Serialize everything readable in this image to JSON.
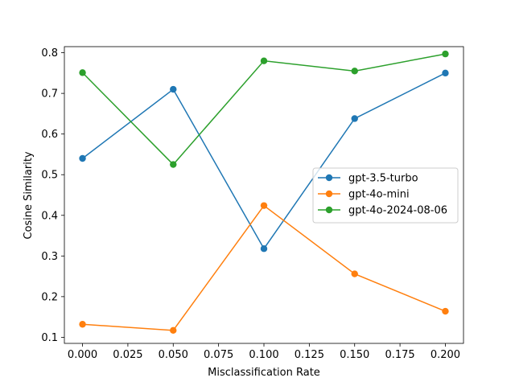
{
  "chart_data": {
    "type": "line",
    "title": "",
    "xlabel": "Misclassification Rate",
    "ylabel": "Cosine Similarity",
    "x": [
      0.0,
      0.05,
      0.1,
      0.15,
      0.2
    ],
    "xlim": [
      -0.01,
      0.21
    ],
    "ylim": [
      0.085,
      0.815
    ],
    "xticks": [
      "0.000",
      "0.025",
      "0.050",
      "0.075",
      "0.100",
      "0.125",
      "0.150",
      "0.175",
      "0.200"
    ],
    "yticks": [
      "0.1",
      "0.2",
      "0.3",
      "0.4",
      "0.5",
      "0.6",
      "0.7",
      "0.8"
    ],
    "grid": false,
    "legend_position": "center-right",
    "series": [
      {
        "name": "gpt-3.5-turbo",
        "color": "#1f77b4",
        "values": [
          0.54,
          0.71,
          0.318,
          0.638,
          0.75
        ]
      },
      {
        "name": "gpt-4o-mini",
        "color": "#ff7f0e",
        "values": [
          0.132,
          0.117,
          0.424,
          0.256,
          0.164
        ]
      },
      {
        "name": "gpt-4o-2024-08-06",
        "color": "#2ca02c",
        "values": [
          0.751,
          0.525,
          0.78,
          0.755,
          0.797
        ]
      }
    ]
  }
}
